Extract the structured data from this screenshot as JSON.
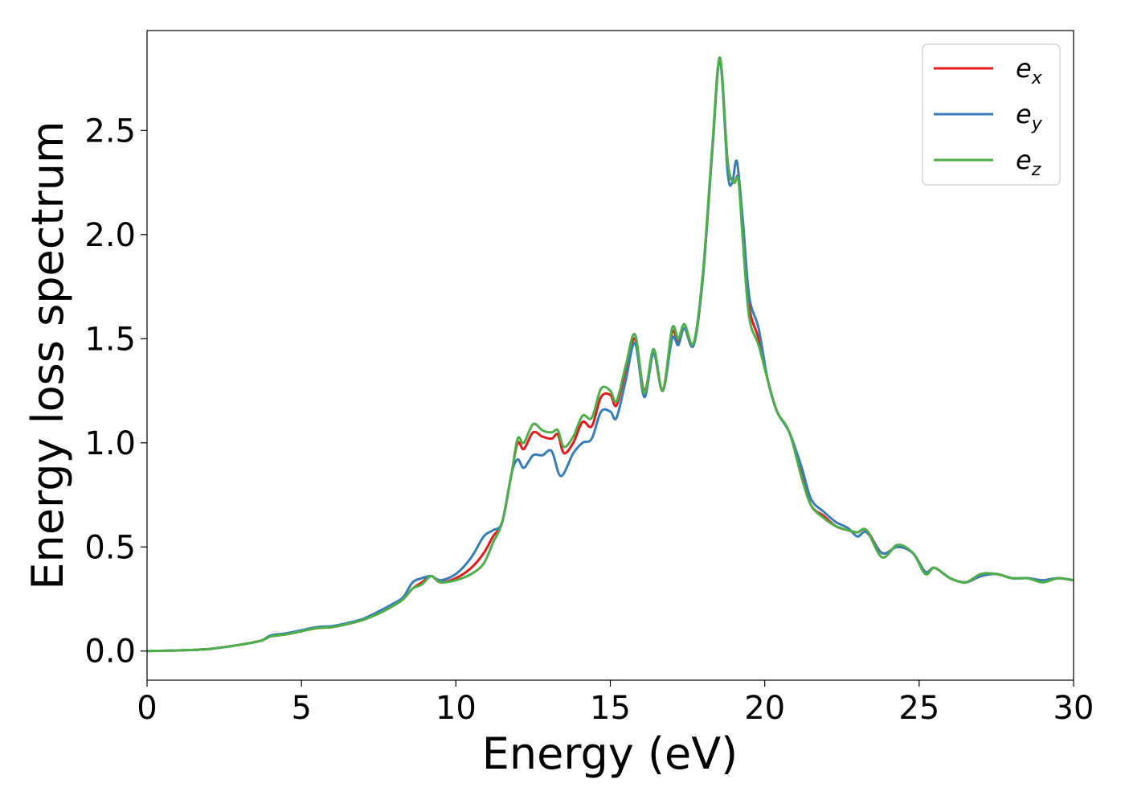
{
  "chart_data": {
    "type": "line",
    "xlabel": "Energy (eV)",
    "ylabel": "Energy loss spectrum",
    "xlim": [
      0,
      30
    ],
    "ylim": [
      -0.14,
      2.98
    ],
    "x_ticks": [
      "0",
      "5",
      "10",
      "15",
      "20",
      "25",
      "30"
    ],
    "y_ticks": [
      "0.0",
      "0.5",
      "1.0",
      "1.5",
      "2.0",
      "2.5"
    ],
    "grid": false,
    "legend_position": "top-right",
    "series": [
      {
        "name": "e",
        "sub": "x",
        "color": "#e41a1c",
        "points": [
          [
            0,
            0.0
          ],
          [
            1,
            0.003
          ],
          [
            2,
            0.01
          ],
          [
            3,
            0.03
          ],
          [
            3.7,
            0.05
          ],
          [
            4,
            0.07
          ],
          [
            4.5,
            0.08
          ],
          [
            5,
            0.095
          ],
          [
            5.5,
            0.11
          ],
          [
            6,
            0.115
          ],
          [
            6.5,
            0.13
          ],
          [
            7,
            0.15
          ],
          [
            7.5,
            0.18
          ],
          [
            8,
            0.22
          ],
          [
            8.3,
            0.25
          ],
          [
            8.6,
            0.3
          ],
          [
            8.9,
            0.33
          ],
          [
            9.2,
            0.36
          ],
          [
            9.5,
            0.33
          ],
          [
            10,
            0.35
          ],
          [
            10.5,
            0.4
          ],
          [
            10.9,
            0.47
          ],
          [
            11.2,
            0.55
          ],
          [
            11.5,
            0.62
          ],
          [
            11.8,
            0.85
          ],
          [
            12.0,
            1.0
          ],
          [
            12.2,
            0.97
          ],
          [
            12.5,
            1.05
          ],
          [
            12.8,
            1.03
          ],
          [
            13.1,
            1.02
          ],
          [
            13.3,
            1.04
          ],
          [
            13.5,
            0.95
          ],
          [
            13.8,
            1.0
          ],
          [
            14.1,
            1.1
          ],
          [
            14.4,
            1.08
          ],
          [
            14.7,
            1.22
          ],
          [
            15.0,
            1.23
          ],
          [
            15.2,
            1.18
          ],
          [
            15.5,
            1.35
          ],
          [
            15.8,
            1.5
          ],
          [
            16.1,
            1.25
          ],
          [
            16.4,
            1.43
          ],
          [
            16.7,
            1.25
          ],
          [
            17.0,
            1.53
          ],
          [
            17.2,
            1.48
          ],
          [
            17.4,
            1.55
          ],
          [
            17.7,
            1.47
          ],
          [
            18.0,
            1.8
          ],
          [
            18.3,
            2.4
          ],
          [
            18.55,
            2.84
          ],
          [
            18.8,
            2.35
          ],
          [
            19.0,
            2.25
          ],
          [
            19.15,
            2.27
          ],
          [
            19.3,
            2.0
          ],
          [
            19.5,
            1.65
          ],
          [
            19.8,
            1.5
          ],
          [
            20.1,
            1.3
          ],
          [
            20.4,
            1.15
          ],
          [
            20.8,
            1.05
          ],
          [
            21.2,
            0.85
          ],
          [
            21.5,
            0.7
          ],
          [
            21.9,
            0.65
          ],
          [
            22.3,
            0.6
          ],
          [
            22.7,
            0.58
          ],
          [
            23.0,
            0.57
          ],
          [
            23.3,
            0.58
          ],
          [
            23.8,
            0.47
          ],
          [
            24.3,
            0.5
          ],
          [
            24.8,
            0.47
          ],
          [
            25.2,
            0.38
          ],
          [
            25.5,
            0.4
          ],
          [
            26.0,
            0.35
          ],
          [
            26.5,
            0.33
          ],
          [
            27.0,
            0.36
          ],
          [
            27.5,
            0.37
          ],
          [
            28.0,
            0.35
          ],
          [
            28.5,
            0.35
          ],
          [
            29.0,
            0.34
          ],
          [
            29.5,
            0.35
          ],
          [
            30,
            0.34
          ]
        ]
      },
      {
        "name": "e",
        "sub": "y",
        "color": "#377eb8",
        "points": [
          [
            0,
            0.0
          ],
          [
            1,
            0.003
          ],
          [
            2,
            0.01
          ],
          [
            3,
            0.03
          ],
          [
            3.7,
            0.05
          ],
          [
            4,
            0.075
          ],
          [
            4.5,
            0.085
          ],
          [
            5,
            0.1
          ],
          [
            5.5,
            0.115
          ],
          [
            6,
            0.12
          ],
          [
            6.5,
            0.135
          ],
          [
            7,
            0.155
          ],
          [
            7.5,
            0.19
          ],
          [
            8,
            0.23
          ],
          [
            8.3,
            0.26
          ],
          [
            8.6,
            0.33
          ],
          [
            8.9,
            0.35
          ],
          [
            9.2,
            0.36
          ],
          [
            9.5,
            0.34
          ],
          [
            10,
            0.37
          ],
          [
            10.5,
            0.45
          ],
          [
            10.9,
            0.55
          ],
          [
            11.2,
            0.58
          ],
          [
            11.5,
            0.62
          ],
          [
            11.8,
            0.85
          ],
          [
            12.0,
            0.92
          ],
          [
            12.2,
            0.88
          ],
          [
            12.5,
            0.94
          ],
          [
            12.8,
            0.94
          ],
          [
            13.1,
            0.96
          ],
          [
            13.4,
            0.84
          ],
          [
            13.8,
            0.95
          ],
          [
            14.1,
            1.0
          ],
          [
            14.4,
            1.02
          ],
          [
            14.7,
            1.15
          ],
          [
            15.0,
            1.15
          ],
          [
            15.2,
            1.12
          ],
          [
            15.5,
            1.3
          ],
          [
            15.8,
            1.48
          ],
          [
            16.1,
            1.22
          ],
          [
            16.4,
            1.43
          ],
          [
            16.7,
            1.25
          ],
          [
            17.0,
            1.5
          ],
          [
            17.2,
            1.47
          ],
          [
            17.4,
            1.55
          ],
          [
            17.7,
            1.47
          ],
          [
            18.0,
            1.8
          ],
          [
            18.3,
            2.4
          ],
          [
            18.55,
            2.84
          ],
          [
            18.8,
            2.3
          ],
          [
            18.95,
            2.25
          ],
          [
            19.1,
            2.35
          ],
          [
            19.3,
            2.05
          ],
          [
            19.5,
            1.7
          ],
          [
            19.8,
            1.55
          ],
          [
            20.1,
            1.3
          ],
          [
            20.4,
            1.15
          ],
          [
            20.8,
            1.05
          ],
          [
            21.2,
            0.88
          ],
          [
            21.5,
            0.73
          ],
          [
            21.9,
            0.67
          ],
          [
            22.3,
            0.62
          ],
          [
            22.7,
            0.59
          ],
          [
            23.0,
            0.55
          ],
          [
            23.3,
            0.57
          ],
          [
            23.8,
            0.47
          ],
          [
            24.3,
            0.5
          ],
          [
            24.8,
            0.47
          ],
          [
            25.2,
            0.38
          ],
          [
            25.5,
            0.4
          ],
          [
            26.0,
            0.35
          ],
          [
            26.5,
            0.33
          ],
          [
            27.0,
            0.36
          ],
          [
            27.5,
            0.37
          ],
          [
            28.0,
            0.35
          ],
          [
            28.5,
            0.35
          ],
          [
            29.0,
            0.34
          ],
          [
            29.5,
            0.35
          ],
          [
            30,
            0.34
          ]
        ]
      },
      {
        "name": "e",
        "sub": "z",
        "color": "#4daf4a",
        "points": [
          [
            0,
            0.0
          ],
          [
            1,
            0.003
          ],
          [
            2,
            0.01
          ],
          [
            3,
            0.03
          ],
          [
            3.7,
            0.05
          ],
          [
            4,
            0.07
          ],
          [
            4.5,
            0.08
          ],
          [
            5,
            0.095
          ],
          [
            5.5,
            0.11
          ],
          [
            6,
            0.115
          ],
          [
            6.5,
            0.13
          ],
          [
            7,
            0.15
          ],
          [
            7.5,
            0.18
          ],
          [
            8,
            0.22
          ],
          [
            8.3,
            0.25
          ],
          [
            8.6,
            0.3
          ],
          [
            8.9,
            0.32
          ],
          [
            9.2,
            0.36
          ],
          [
            9.5,
            0.33
          ],
          [
            10,
            0.34
          ],
          [
            10.5,
            0.37
          ],
          [
            10.9,
            0.42
          ],
          [
            11.2,
            0.52
          ],
          [
            11.5,
            0.62
          ],
          [
            11.8,
            0.85
          ],
          [
            12.0,
            1.02
          ],
          [
            12.2,
            1.0
          ],
          [
            12.5,
            1.09
          ],
          [
            12.8,
            1.06
          ],
          [
            13.1,
            1.05
          ],
          [
            13.3,
            1.06
          ],
          [
            13.5,
            0.98
          ],
          [
            13.8,
            1.03
          ],
          [
            14.1,
            1.13
          ],
          [
            14.4,
            1.12
          ],
          [
            14.7,
            1.26
          ],
          [
            15.0,
            1.25
          ],
          [
            15.2,
            1.2
          ],
          [
            15.5,
            1.37
          ],
          [
            15.8,
            1.52
          ],
          [
            16.1,
            1.24
          ],
          [
            16.4,
            1.45
          ],
          [
            16.7,
            1.25
          ],
          [
            17.0,
            1.55
          ],
          [
            17.2,
            1.5
          ],
          [
            17.4,
            1.57
          ],
          [
            17.7,
            1.48
          ],
          [
            18.0,
            1.82
          ],
          [
            18.3,
            2.42
          ],
          [
            18.55,
            2.85
          ],
          [
            18.8,
            2.35
          ],
          [
            19.0,
            2.25
          ],
          [
            19.15,
            2.26
          ],
          [
            19.3,
            1.95
          ],
          [
            19.5,
            1.6
          ],
          [
            19.8,
            1.47
          ],
          [
            20.1,
            1.3
          ],
          [
            20.4,
            1.15
          ],
          [
            20.8,
            1.05
          ],
          [
            21.2,
            0.83
          ],
          [
            21.5,
            0.7
          ],
          [
            21.9,
            0.64
          ],
          [
            22.3,
            0.6
          ],
          [
            22.7,
            0.58
          ],
          [
            23.0,
            0.57
          ],
          [
            23.3,
            0.58
          ],
          [
            23.8,
            0.45
          ],
          [
            24.3,
            0.51
          ],
          [
            24.8,
            0.47
          ],
          [
            25.2,
            0.37
          ],
          [
            25.5,
            0.4
          ],
          [
            26.0,
            0.35
          ],
          [
            26.5,
            0.33
          ],
          [
            27.0,
            0.37
          ],
          [
            27.5,
            0.37
          ],
          [
            28.0,
            0.35
          ],
          [
            28.5,
            0.35
          ],
          [
            29.0,
            0.33
          ],
          [
            29.5,
            0.35
          ],
          [
            30,
            0.34
          ]
        ]
      }
    ]
  }
}
